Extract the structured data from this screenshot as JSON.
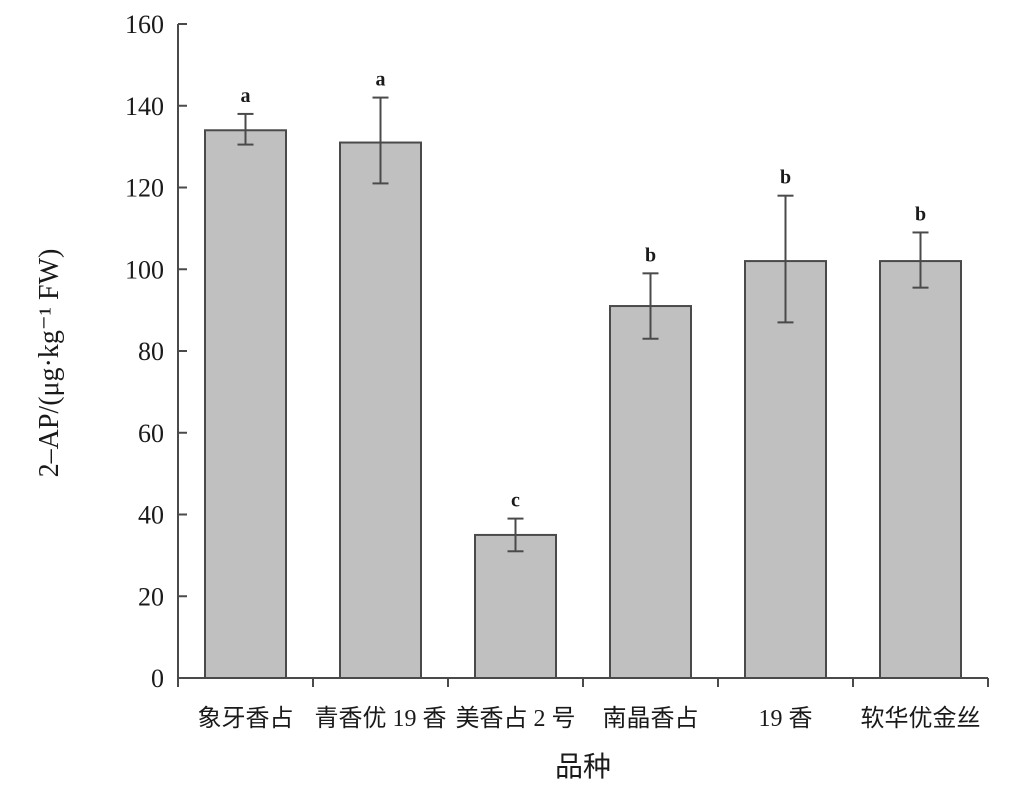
{
  "chart_data": {
    "type": "bar",
    "xlabel": "品种",
    "ylabel": "2–AP/(μg·kg⁻¹ FW)",
    "ylim": [
      0,
      160
    ],
    "yticks": [
      0,
      20,
      40,
      60,
      80,
      100,
      120,
      140,
      160
    ],
    "categories": [
      "象牙香占",
      "青香优 19 香",
      "美香占 2 号",
      "南晶香占",
      "19 香",
      "软华优金丝"
    ],
    "values": [
      134,
      131,
      35,
      91,
      102,
      102
    ],
    "error_low": [
      130.5,
      121,
      31,
      83,
      87,
      95.5
    ],
    "error_high": [
      138,
      142,
      39,
      99,
      118,
      109
    ],
    "significance": [
      "a",
      "a",
      "c",
      "b",
      "b",
      "b"
    ],
    "grid": false,
    "legend": "none",
    "colors": {
      "bar_fill": "#c0c0c0",
      "bar_stroke": "#4a4a4a",
      "axis": "#4a4a4a"
    }
  }
}
